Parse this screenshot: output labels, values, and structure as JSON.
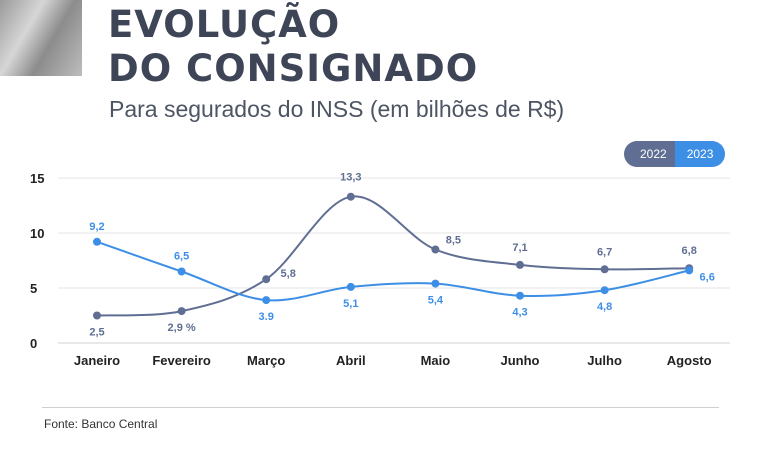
{
  "header": {
    "title_line1": "EVOLUÇÃO",
    "title_line2": "DO CONSIGNADO",
    "subtitle": "Para segurados do INSS (em bilhões de R$)"
  },
  "footer": {
    "source": "Fonte: Banco Central"
  },
  "chart_data": {
    "type": "line",
    "title": "EVOLUÇÃO DO CONSIGNADO",
    "subtitle": "Para segurados do INSS (em bilhões de R$)",
    "categories": [
      "Janeiro",
      "Fevereiro",
      "Março",
      "Abril",
      "Maio",
      "Junho",
      "Julho",
      "Agosto"
    ],
    "yticks": [
      "0",
      "5",
      "10",
      "15"
    ],
    "ylim": [
      0,
      15
    ],
    "grid": true,
    "legend_position": "top-right",
    "series": [
      {
        "name": "2022",
        "color": "#5f6e92",
        "values": [
          2.5,
          2.9,
          5.8,
          13.3,
          8.5,
          7.1,
          6.7,
          6.8
        ],
        "labels": [
          "2,5",
          "2,9 %",
          "5,8",
          "13,3",
          "8,5",
          "7,1",
          "6,7",
          "6,8"
        ]
      },
      {
        "name": "2023",
        "color": "#3d8fe6",
        "values": [
          9.2,
          6.5,
          3.9,
          5.1,
          5.4,
          4.3,
          4.8,
          6.6
        ],
        "labels": [
          "9,2",
          "6,5",
          "3.9",
          "5,1",
          "5,4",
          "4,3",
          "4,8",
          "6,6"
        ]
      }
    ]
  }
}
